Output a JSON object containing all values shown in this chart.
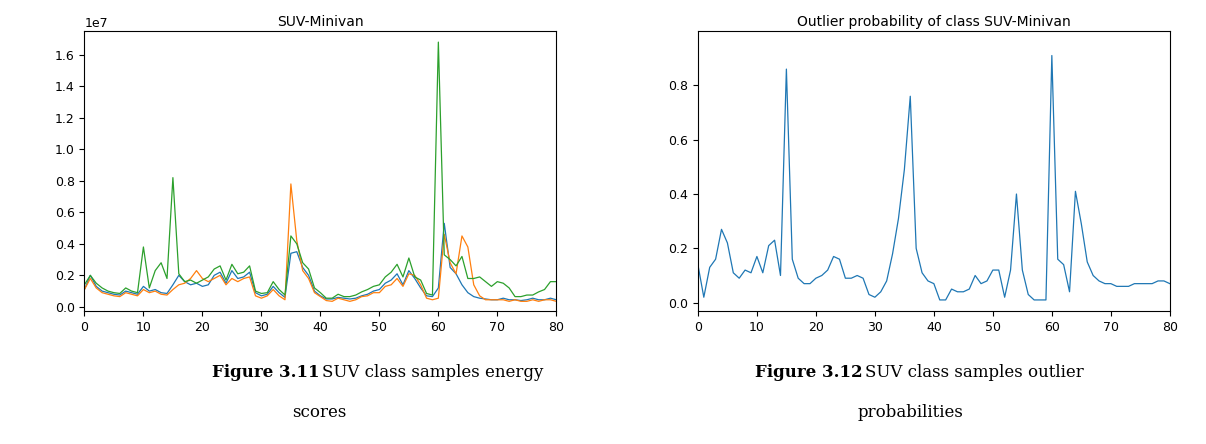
{
  "plot1_title": "SUV-Minivan",
  "plot2_title": "Outlier probability of class SUV-Minivan",
  "xlim": [
    0,
    80
  ],
  "plot1_ylim": [
    -250000.0,
    17500000.0
  ],
  "plot2_ylim": [
    -0.03,
    1.0
  ],
  "plot2_yticks": [
    0.0,
    0.2,
    0.4,
    0.6,
    0.8
  ],
  "xticks": [
    0,
    10,
    20,
    30,
    40,
    50,
    60,
    70,
    80
  ],
  "line_color_blue": "#1f77b4",
  "line_color_orange": "#ff7f0e",
  "line_color_green": "#2ca02c",
  "line_color_prob": "#1f77b4",
  "bg_color": "#ffffff",
  "blue_y": [
    1.1,
    2.0,
    1.3,
    1.0,
    0.9,
    0.8,
    0.75,
    1.0,
    0.9,
    0.8,
    1.3,
    1.0,
    1.1,
    0.9,
    0.85,
    1.4,
    2.0,
    1.6,
    1.4,
    1.5,
    1.3,
    1.4,
    2.0,
    2.2,
    1.5,
    2.3,
    1.8,
    1.9,
    2.2,
    0.9,
    0.7,
    0.8,
    1.3,
    0.9,
    0.6,
    3.4,
    3.5,
    2.5,
    2.0,
    1.0,
    0.7,
    0.5,
    0.5,
    0.6,
    0.55,
    0.5,
    0.55,
    0.7,
    0.8,
    1.0,
    1.1,
    1.5,
    1.7,
    2.1,
    1.4,
    2.3,
    1.8,
    1.2,
    0.7,
    0.65,
    1.2,
    5.3,
    2.5,
    2.1,
    1.4,
    0.9,
    0.65,
    0.55,
    0.5,
    0.45,
    0.45,
    0.55,
    0.45,
    0.45,
    0.4,
    0.45,
    0.55,
    0.45,
    0.45,
    0.55,
    0.45
  ],
  "orange_y": [
    1.1,
    1.8,
    1.2,
    0.9,
    0.8,
    0.7,
    0.65,
    0.9,
    0.8,
    0.7,
    1.1,
    0.9,
    1.0,
    0.8,
    0.75,
    1.1,
    1.4,
    1.5,
    1.8,
    2.3,
    1.8,
    1.6,
    1.8,
    2.0,
    1.4,
    1.8,
    1.6,
    1.8,
    1.9,
    0.7,
    0.55,
    0.7,
    1.1,
    0.7,
    0.45,
    7.8,
    4.2,
    2.3,
    1.8,
    0.9,
    0.65,
    0.4,
    0.35,
    0.55,
    0.45,
    0.35,
    0.45,
    0.65,
    0.7,
    0.9,
    0.9,
    1.3,
    1.4,
    1.8,
    1.3,
    2.1,
    2.0,
    1.4,
    0.55,
    0.45,
    0.55,
    4.6,
    2.8,
    2.1,
    4.5,
    3.8,
    1.4,
    0.7,
    0.45,
    0.45,
    0.45,
    0.45,
    0.35,
    0.45,
    0.35,
    0.35,
    0.45,
    0.35,
    0.45,
    0.45,
    0.35
  ],
  "green_y": [
    1.4,
    2.0,
    1.5,
    1.2,
    1.0,
    0.9,
    0.85,
    1.2,
    1.0,
    0.9,
    3.8,
    1.2,
    2.3,
    2.8,
    1.8,
    8.2,
    2.1,
    1.6,
    1.7,
    1.5,
    1.7,
    1.9,
    2.4,
    2.6,
    1.7,
    2.7,
    2.1,
    2.2,
    2.6,
    1.0,
    0.85,
    0.9,
    1.6,
    1.1,
    0.75,
    4.5,
    4.0,
    2.8,
    2.4,
    1.2,
    0.9,
    0.55,
    0.55,
    0.8,
    0.65,
    0.65,
    0.75,
    0.95,
    1.1,
    1.3,
    1.4,
    1.9,
    2.2,
    2.7,
    1.9,
    3.1,
    1.9,
    1.7,
    0.85,
    0.75,
    16.8,
    3.3,
    3.0,
    2.6,
    3.2,
    1.8,
    1.8,
    1.9,
    1.6,
    1.3,
    1.6,
    1.5,
    1.2,
    0.65,
    0.65,
    0.75,
    0.75,
    0.95,
    1.1,
    1.6,
    1.6
  ],
  "prob_y": [
    0.14,
    0.02,
    0.13,
    0.16,
    0.27,
    0.22,
    0.11,
    0.09,
    0.12,
    0.11,
    0.17,
    0.11,
    0.21,
    0.23,
    0.1,
    0.86,
    0.16,
    0.09,
    0.07,
    0.07,
    0.09,
    0.1,
    0.12,
    0.17,
    0.16,
    0.09,
    0.09,
    0.1,
    0.09,
    0.03,
    0.02,
    0.04,
    0.08,
    0.18,
    0.31,
    0.49,
    0.76,
    0.2,
    0.11,
    0.08,
    0.07,
    0.01,
    0.01,
    0.05,
    0.04,
    0.04,
    0.05,
    0.1,
    0.07,
    0.08,
    0.12,
    0.12,
    0.02,
    0.12,
    0.4,
    0.12,
    0.03,
    0.01,
    0.01,
    0.01,
    0.91,
    0.16,
    0.14,
    0.04,
    0.41,
    0.29,
    0.15,
    0.1,
    0.08,
    0.07,
    0.07,
    0.06,
    0.06,
    0.06,
    0.07,
    0.07,
    0.07,
    0.07,
    0.08,
    0.08,
    0.07
  ]
}
